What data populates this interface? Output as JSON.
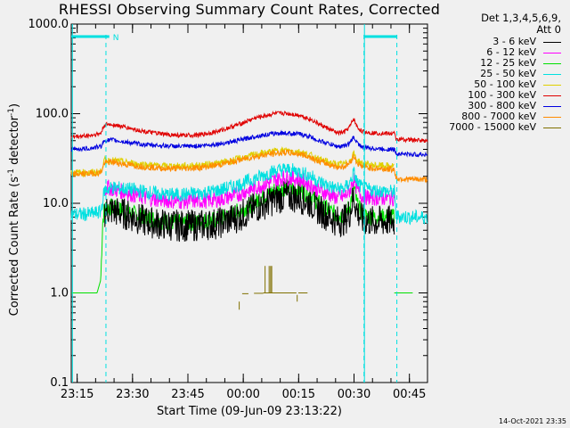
{
  "chart_data": {
    "type": "line",
    "title": "RHESSI Observing Summary Count Rates, Corrected",
    "xlabel": "Start Time (09-Jun-09 23:13:22)",
    "ylabel_parts": [
      "Corrected Count Rate (s",
      "-1",
      " detector",
      "-1",
      ")"
    ],
    "yscale": "log",
    "ylim": [
      0.1,
      1000
    ],
    "y_ticks": [
      "1000.0",
      "100.0",
      "10.0",
      "1.0",
      "0.1"
    ],
    "x_ticks": [
      "23:15",
      "23:30",
      "23:45",
      "00:00",
      "00:15",
      "00:30",
      "00:45"
    ],
    "x_unit": "minutes after 23:13:22",
    "x_tick_positions": [
      1.6,
      16.6,
      31.6,
      46.6,
      61.6,
      76.6,
      91.6
    ],
    "xlim": [
      0,
      96.5
    ],
    "legend_header": [
      "Det 1,3,4,5,6,9,",
      "Att 0"
    ],
    "series": [
      {
        "name": "3 - 6 keV",
        "color": "#000000",
        "noise": 0.18,
        "x": [
          9,
          10,
          11,
          15,
          20,
          25,
          30,
          35,
          40,
          45,
          50,
          55,
          58,
          62,
          65,
          67,
          70,
          72,
          74,
          75.5,
          76.5,
          77.5,
          79,
          82,
          86,
          87.5
        ],
        "y": [
          8,
          8.5,
          8.3,
          7.5,
          6.3,
          5.8,
          5.6,
          5.7,
          6,
          7,
          9,
          11,
          12,
          11.5,
          10,
          8.5,
          7,
          6.3,
          6.5,
          8,
          12,
          8,
          6.5,
          6.2,
          6.3,
          6.3
        ]
      },
      {
        "name": "6 - 12 keV",
        "color": "#ff00ff",
        "noise": 0.09,
        "x": [
          9,
          10,
          11,
          15,
          20,
          25,
          30,
          35,
          40,
          45,
          50,
          55,
          58,
          62,
          65,
          67,
          70,
          72,
          74,
          75.5,
          76.5,
          77.5,
          79,
          82,
          86,
          87.5
        ],
        "y": [
          14,
          15,
          14.5,
          13.2,
          11.5,
          10.8,
          10.5,
          10.6,
          11,
          12.5,
          15,
          18,
          19.5,
          18.5,
          16,
          14,
          12.5,
          11.5,
          11.8,
          14,
          19,
          14,
          11.8,
          11.5,
          11.5,
          11.5
        ]
      },
      {
        "name": "12 - 25 keV",
        "color": "#00e000",
        "noise": 0.1,
        "x": [
          0,
          5.5,
          6,
          7,
          8,
          8.5,
          9,
          11,
          15,
          20,
          25,
          30,
          35,
          40,
          45,
          50,
          55,
          58,
          62,
          65,
          67,
          70,
          72,
          74,
          75.5,
          76.5,
          77.5,
          79,
          82,
          86,
          87.5
        ],
        "y": [
          1,
          1,
          1,
          1,
          1.4,
          6,
          9,
          9,
          8,
          7,
          6.3,
          6,
          6.2,
          6.6,
          8,
          10.5,
          14,
          15,
          14.2,
          12,
          10,
          8.2,
          7.3,
          7.4,
          9.5,
          15.5,
          9.5,
          7.3,
          7,
          7,
          7
        ]
      },
      {
        "name": "25 - 50 keV",
        "color": "#00e0e0",
        "noise": 0.08,
        "x": [
          0,
          5,
          8,
          9,
          11,
          15,
          20,
          25,
          30,
          35,
          40,
          45,
          50,
          55,
          58,
          62,
          65,
          67,
          70,
          72,
          74,
          75.5,
          76.5,
          77.5,
          79,
          82,
          86,
          87.5,
          88,
          92,
          96.5
        ],
        "y": [
          7.5,
          7.6,
          8,
          14,
          15,
          14.5,
          13.5,
          12.5,
          12.5,
          13,
          14,
          16,
          19,
          23,
          24,
          22.5,
          20,
          17.5,
          15.5,
          14.5,
          14.6,
          17,
          22,
          17,
          14.5,
          14,
          13.5,
          13.5,
          7.2,
          7,
          7
        ]
      },
      {
        "name": "50 - 100 keV",
        "color": "#e0d000",
        "noise": 0.04,
        "x": [
          0,
          5,
          8,
          9,
          11,
          15,
          20,
          25,
          30,
          35,
          40,
          45,
          50,
          55,
          58,
          62,
          65,
          67,
          70,
          72,
          74,
          75.5,
          76.5,
          77.5,
          79,
          82,
          86,
          87.5
        ],
        "y": [
          22,
          22,
          22.5,
          30,
          30,
          28.5,
          27,
          26,
          26,
          26.5,
          28,
          31,
          35,
          38,
          39,
          37.5,
          34,
          31,
          28.5,
          27,
          27.3,
          30,
          36,
          30,
          27.5,
          26.5,
          26,
          26
        ]
      },
      {
        "name": "100 - 300 keV",
        "color": "#e00000",
        "noise": 0.025,
        "x": [
          0,
          5,
          8,
          9,
          11,
          15,
          20,
          25,
          30,
          35,
          40,
          45,
          50,
          55,
          58,
          62,
          65,
          67,
          70,
          72,
          74,
          75.5,
          76.5,
          77.5,
          79,
          82,
          86,
          87.5,
          88,
          92,
          96.5
        ],
        "y": [
          55,
          57,
          60,
          75,
          76,
          70,
          63,
          59,
          57,
          58,
          64,
          75,
          90,
          100,
          101,
          96,
          86,
          77,
          67,
          61,
          62,
          72,
          88,
          70,
          63,
          61,
          60,
          60,
          52,
          51,
          50
        ]
      },
      {
        "name": "300 - 800 keV",
        "color": "#0000e0",
        "noise": 0.025,
        "x": [
          0,
          5,
          8,
          9,
          11,
          15,
          20,
          25,
          30,
          35,
          40,
          45,
          50,
          55,
          58,
          62,
          65,
          67,
          70,
          72,
          74,
          75.5,
          76.5,
          77.5,
          79,
          82,
          86,
          87.5,
          88,
          92,
          96.5
        ],
        "y": [
          40,
          41,
          43,
          50,
          51,
          48,
          45,
          44,
          43,
          44,
          46,
          50,
          56,
          60,
          61,
          59,
          55,
          50,
          46,
          43,
          43.5,
          47,
          55,
          47,
          42,
          41,
          40,
          40,
          36,
          35,
          35
        ]
      },
      {
        "name": "800 - 7000 keV",
        "color": "#ff8c00",
        "noise": 0.035,
        "x": [
          0,
          5,
          8,
          9,
          11,
          15,
          20,
          25,
          30,
          35,
          40,
          45,
          50,
          55,
          58,
          62,
          65,
          67,
          70,
          72,
          74,
          75.5,
          76.5,
          77.5,
          79,
          82,
          86,
          87.5,
          88,
          92,
          96.5
        ],
        "y": [
          21,
          21.5,
          22,
          28,
          29,
          27,
          25.5,
          24.5,
          24.5,
          25,
          27,
          30,
          33.5,
          36,
          37,
          35.5,
          32.5,
          29.5,
          27,
          25.5,
          25.7,
          28.5,
          34,
          28,
          25.5,
          24.5,
          24,
          24,
          19,
          18.5,
          18.5
        ]
      },
      {
        "name": "7000 - 15000 keV",
        "color": "#807000",
        "noise": 0,
        "x": [],
        "y": []
      }
    ],
    "gaps": [
      {
        "x": [
          6,
          6,
          8,
          8
        ],
        "y": [
          1,
          0.6,
          0.6,
          1
        ]
      },
      {
        "x": [
          85,
          85,
          87.5,
          87.5
        ],
        "y": [
          1,
          0.6,
          0.6,
          1
        ]
      }
    ],
    "segments_7000": [
      {
        "x": [
          52,
          61
        ],
        "y": [
          1,
          1
        ]
      },
      {
        "x": [
          49.5,
          52
        ],
        "y": [
          0.99,
          0.99
        ]
      },
      {
        "x": [
          52.5,
          52.5
        ],
        "y": [
          1,
          2
        ]
      },
      {
        "x": [
          53.6,
          53.6
        ],
        "y": [
          1,
          2
        ]
      },
      {
        "x": [
          54,
          54
        ],
        "y": [
          1,
          2
        ]
      },
      {
        "x": [
          54.3,
          54.3
        ],
        "y": [
          1,
          2
        ]
      },
      {
        "x": [
          61.5,
          64
        ],
        "y": [
          1,
          1
        ]
      },
      {
        "x": [
          61.2,
          61.2
        ],
        "y": [
          0.95,
          0.8
        ]
      },
      {
        "x": [
          45.5,
          45.5
        ],
        "y": [
          0.8,
          0.65
        ]
      },
      {
        "x": [
          46.3,
          48
        ],
        "y": [
          0.98,
          0.98
        ]
      }
    ],
    "night_markers_x": [
      9.4,
      79.3,
      88.2
    ],
    "saa_markers_x": [
      0.2,
      79.3
    ],
    "top_flags": [
      {
        "x": [
          0,
          10.3
        ],
        "label": ""
      },
      {
        "x": [
          79.3,
          88.2
        ],
        "label": ""
      }
    ],
    "top_flag_label": "N"
  },
  "footer": "14-Oct-2021 23:35"
}
